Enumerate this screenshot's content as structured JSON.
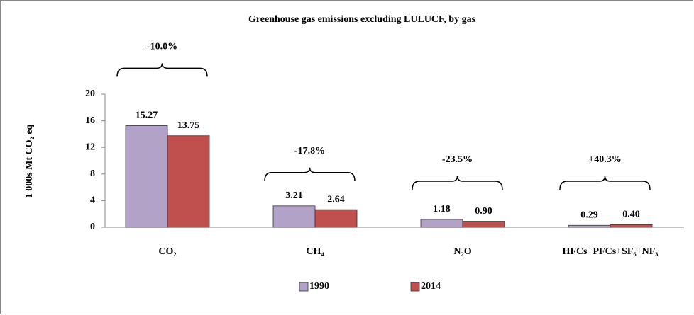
{
  "chart_data": {
    "type": "bar",
    "title": "Greenhouse gas emissions excluding LULUCF, by gas",
    "y_label": "1 000s Mt CO₂ eq",
    "categories": [
      "CO₂",
      "CH₄",
      "N₂O",
      "HFCs+PFCs+SF₆+NF₃"
    ],
    "series": [
      {
        "name": "1990",
        "color": "#b3a2c7",
        "values": [
          15.27,
          3.21,
          1.18,
          0.29
        ],
        "value_labels": [
          "15.27",
          "3.21",
          "1.18",
          "0.29"
        ]
      },
      {
        "name": "2014",
        "color": "#c0504d",
        "values": [
          13.75,
          2.64,
          0.9,
          0.4
        ],
        "value_labels": [
          "13.75",
          "2.64",
          "0.90",
          "0.40"
        ]
      }
    ],
    "annotations": [
      "-10.0%",
      "-17.8%",
      "-23.5%",
      "+40.3%"
    ],
    "ylim": [
      0,
      20
    ],
    "yticks": [
      0,
      4,
      8,
      12,
      16,
      20
    ],
    "grid": false,
    "legend": "bottom"
  }
}
